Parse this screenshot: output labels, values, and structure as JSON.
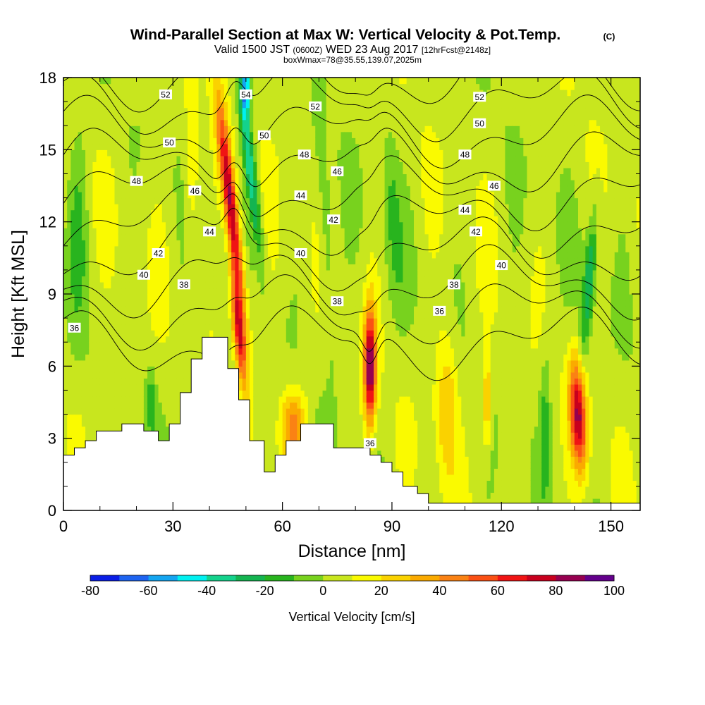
{
  "chart_data": {
    "type": "heatmap",
    "title": "Wind-Parallel Section at Max W: Vertical Velocity & Pot.Temp.",
    "title_mark": "(C)",
    "subtitle_main_a": "Valid 1500 JST",
    "subtitle_small_a": "(0600Z)",
    "subtitle_main_b": "WED 23 Aug 2017",
    "subtitle_small_b": "[12hrFcst@2148z]",
    "subtitle2": "boxWmax=78@35.55,139.07,2025m",
    "xlabel": "Distance [nm]",
    "ylabel": "Height [Kft MSL]",
    "xlim": [
      0,
      158
    ],
    "ylim": [
      0,
      18
    ],
    "x_ticks": [
      0,
      30,
      60,
      90,
      120,
      150
    ],
    "x_tick_labels": [
      "0",
      "30",
      "60",
      "90",
      "120",
      "150"
    ],
    "y_ticks": [
      0,
      3,
      6,
      9,
      12,
      15,
      18
    ],
    "y_tick_labels": [
      "0",
      "3",
      "6",
      "9",
      "12",
      "15",
      "18"
    ],
    "colorbar": {
      "label": "Vertical Velocity [cm/s]",
      "levels": [
        -80,
        -70,
        -60,
        -50,
        -40,
        -30,
        -20,
        -10,
        0,
        10,
        20,
        30,
        40,
        50,
        60,
        70,
        80,
        90,
        100
      ],
      "tick_labels": [
        "-80",
        "-60",
        "-40",
        "-20",
        "0",
        "20",
        "40",
        "60",
        "80",
        "100"
      ],
      "colors": [
        "#0a1ee6",
        "#1e64f0",
        "#14a5f0",
        "#00f0f0",
        "#14d28c",
        "#14b450",
        "#28b41e",
        "#78d21e",
        "#c8e61e",
        "#fafa00",
        "#fad200",
        "#faaa00",
        "#fa8214",
        "#fa5014",
        "#f01414",
        "#c8001e",
        "#960050",
        "#64008c"
      ]
    },
    "vertical_velocity_features": [
      {
        "x": 46,
        "y": 12.5,
        "sx": 1.8,
        "sy": 4.5,
        "value": 80,
        "tilt_per_kft": -0.75
      },
      {
        "x": 48,
        "y": 7.5,
        "sx": 1.5,
        "sy": 2.2,
        "value": 70,
        "tilt_per_kft": -0.6
      },
      {
        "x": 51,
        "y": 14.5,
        "sx": 1.6,
        "sy": 4.0,
        "value": -45,
        "tilt_per_kft": -0.75
      },
      {
        "x": 50,
        "y": 17.5,
        "sx": 1.2,
        "sy": 1.0,
        "value": -60,
        "tilt_per_kft": 0
      },
      {
        "x": 84,
        "y": 6.0,
        "sx": 1.6,
        "sy": 2.4,
        "value": 85,
        "tilt_per_kft": 0
      },
      {
        "x": 141,
        "y": 4.0,
        "sx": 2.2,
        "sy": 2.2,
        "value": 75,
        "tilt_per_kft": -0.3
      },
      {
        "x": 144,
        "y": 9.5,
        "sx": 1.6,
        "sy": 3.0,
        "value": -35,
        "tilt_per_kft": 0.5
      },
      {
        "x": 63,
        "y": 3.5,
        "sx": 3.5,
        "sy": 1.5,
        "value": 40,
        "tilt_per_kft": 0
      },
      {
        "x": 105,
        "y": 4.5,
        "sx": 3.0,
        "sy": 3.0,
        "value": 25,
        "tilt_per_kft": 0
      },
      {
        "x": 116,
        "y": 4.5,
        "sx": 1.2,
        "sy": 2.0,
        "value": 30,
        "tilt_per_kft": 0
      },
      {
        "x": 132,
        "y": 4.0,
        "sx": 1.5,
        "sy": 3.0,
        "value": -18,
        "tilt_per_kft": 0
      },
      {
        "x": 90,
        "y": 12.5,
        "sx": 2.5,
        "sy": 4.0,
        "value": -15,
        "tilt_per_kft": -0.3
      },
      {
        "x": 24,
        "y": 4.5,
        "sx": 1.2,
        "sy": 1.5,
        "value": -18,
        "tilt_per_kft": 0
      },
      {
        "x": 35,
        "y": 14.0,
        "sx": 2.0,
        "sy": 3.0,
        "value": 18,
        "tilt_per_kft": 0
      },
      {
        "x": 72,
        "y": 11.0,
        "sx": 2.0,
        "sy": 5.0,
        "value": -15,
        "tilt_per_kft": -0.3
      },
      {
        "x": 4,
        "y": 12.0,
        "sx": 2.5,
        "sy": 4.0,
        "value": -15,
        "tilt_per_kft": 0
      }
    ],
    "terrain": [
      [
        0,
        2.3
      ],
      [
        3,
        2.3
      ],
      [
        3,
        2.6
      ],
      [
        6,
        2.6
      ],
      [
        6,
        2.9
      ],
      [
        9,
        2.9
      ],
      [
        9,
        3.3
      ],
      [
        16,
        3.3
      ],
      [
        16,
        3.6
      ],
      [
        22,
        3.6
      ],
      [
        22,
        3.3
      ],
      [
        26,
        3.3
      ],
      [
        26,
        2.9
      ],
      [
        29,
        2.9
      ],
      [
        29,
        3.6
      ],
      [
        32,
        3.6
      ],
      [
        32,
        4.9
      ],
      [
        35,
        4.9
      ],
      [
        35,
        6.3
      ],
      [
        38,
        6.3
      ],
      [
        38,
        7.2
      ],
      [
        45,
        7.2
      ],
      [
        45,
        5.9
      ],
      [
        48,
        5.9
      ],
      [
        48,
        4.6
      ],
      [
        51,
        4.6
      ],
      [
        51,
        2.9
      ],
      [
        55,
        2.9
      ],
      [
        55,
        1.6
      ],
      [
        58,
        1.6
      ],
      [
        58,
        2.3
      ],
      [
        61,
        2.3
      ],
      [
        61,
        2.9
      ],
      [
        65,
        2.9
      ],
      [
        65,
        3.6
      ],
      [
        74,
        3.6
      ],
      [
        74,
        2.6
      ],
      [
        84,
        2.6
      ],
      [
        84,
        2.3
      ],
      [
        87,
        2.3
      ],
      [
        87,
        2.0
      ],
      [
        90,
        2.0
      ],
      [
        90,
        1.6
      ],
      [
        93,
        1.6
      ],
      [
        93,
        1.0
      ],
      [
        97,
        1.0
      ],
      [
        97,
        0.7
      ],
      [
        100,
        0.7
      ],
      [
        100,
        0.3
      ],
      [
        158,
        0.3
      ]
    ],
    "theta_contours": [
      {
        "label": "36",
        "level": 36,
        "label_x": 3,
        "label_y": 7.6
      },
      {
        "label": "38",
        "level": 38,
        "label_x": 33,
        "label_y": 9.4
      },
      {
        "label": "40",
        "level": 40,
        "label_x": 22,
        "label_y": 9.8
      },
      {
        "label": "42",
        "level": 42,
        "label_x": 26,
        "label_y": 10.7
      },
      {
        "label": "44",
        "level": 44,
        "label_x": 40,
        "label_y": 11.6
      },
      {
        "label": "46",
        "level": 46,
        "label_x": 36,
        "label_y": 13.3
      },
      {
        "label": "48",
        "level": 48,
        "label_x": 20,
        "label_y": 13.7
      },
      {
        "label": "50",
        "level": 50,
        "label_x": 29,
        "label_y": 15.3
      },
      {
        "label": "52",
        "level": 52,
        "label_x": 28,
        "label_y": 17.3
      },
      {
        "label": "54",
        "level": 54,
        "label_x": 50,
        "label_y": 17.3
      },
      {
        "label": "52",
        "level": 52,
        "label_x": 69,
        "label_y": 16.8
      },
      {
        "label": "50",
        "level": 50,
        "label_x": 55,
        "label_y": 15.6
      },
      {
        "label": "48",
        "level": 48,
        "label_x": 66,
        "label_y": 14.8
      },
      {
        "label": "46",
        "level": 46,
        "label_x": 75,
        "label_y": 14.1
      },
      {
        "label": "44",
        "level": 44,
        "label_x": 65,
        "label_y": 13.1
      },
      {
        "label": "42",
        "level": 42,
        "label_x": 74,
        "label_y": 12.1
      },
      {
        "label": "40",
        "level": 40,
        "label_x": 65,
        "label_y": 10.7
      },
      {
        "label": "38",
        "level": 38,
        "label_x": 75,
        "label_y": 8.7
      },
      {
        "label": "36",
        "level": 36,
        "label_x": 84,
        "label_y": 2.8
      },
      {
        "label": "52",
        "level": 52,
        "label_x": 114,
        "label_y": 17.2
      },
      {
        "label": "50",
        "level": 50,
        "label_x": 114,
        "label_y": 16.1
      },
      {
        "label": "48",
        "level": 48,
        "label_x": 110,
        "label_y": 14.8
      },
      {
        "label": "46",
        "level": 46,
        "label_x": 118,
        "label_y": 13.5
      },
      {
        "label": "44",
        "level": 44,
        "label_x": 110,
        "label_y": 12.5
      },
      {
        "label": "42",
        "level": 42,
        "label_x": 113,
        "label_y": 11.6
      },
      {
        "label": "40",
        "level": 40,
        "label_x": 120,
        "label_y": 10.2
      },
      {
        "label": "38",
        "level": 38,
        "label_x": 107,
        "label_y": 9.4
      },
      {
        "label": "36",
        "level": 36,
        "label_x": 103,
        "label_y": 8.3
      }
    ]
  }
}
